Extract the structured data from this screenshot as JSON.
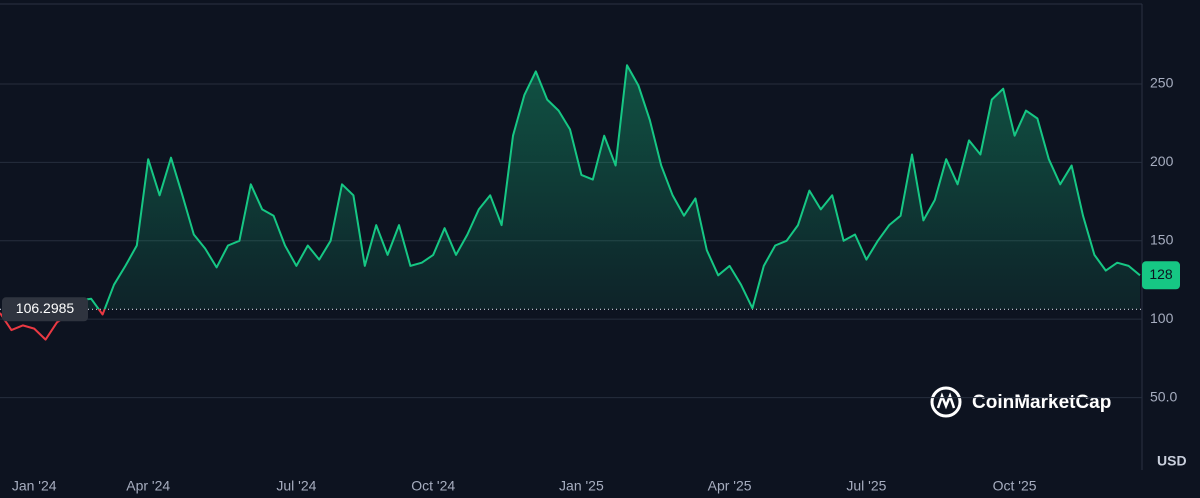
{
  "chart_data": {
    "type": "line",
    "categories": [
      null,
      null,
      null,
      "Jan '24",
      null,
      null,
      null,
      null,
      null,
      null,
      null,
      null,
      null,
      "Apr '24",
      null,
      null,
      null,
      null,
      null,
      null,
      null,
      null,
      null,
      null,
      null,
      null,
      "Jul '24",
      null,
      null,
      null,
      null,
      null,
      null,
      null,
      null,
      null,
      null,
      null,
      "Oct '24",
      null,
      null,
      null,
      null,
      null,
      null,
      null,
      null,
      null,
      null,
      null,
      null,
      "Jan '25",
      null,
      null,
      null,
      null,
      null,
      null,
      null,
      null,
      null,
      null,
      null,
      null,
      "Apr '25",
      null,
      null,
      null,
      null,
      null,
      null,
      null,
      null,
      null,
      null,
      null,
      "Jul '25",
      null,
      null,
      null,
      null,
      null,
      null,
      null,
      null,
      null,
      null,
      null,
      null,
      "Oct '25",
      null,
      null,
      null,
      null,
      null,
      null,
      null,
      null,
      null,
      null,
      null
    ],
    "series": [
      {
        "color": "#16c784",
        "values": [
          104,
          93,
          96,
          94,
          87,
          98,
          103,
          112,
          113,
          103,
          122,
          134,
          147,
          202,
          179,
          203,
          179,
          154,
          145,
          133,
          147,
          150,
          186,
          170,
          166,
          147,
          134,
          147,
          138,
          150,
          186,
          179,
          134,
          160,
          141,
          160,
          134,
          136,
          141,
          158,
          141,
          154,
          170,
          179,
          160,
          217,
          243,
          258,
          240,
          233,
          221,
          192,
          189,
          217,
          198,
          262,
          249,
          227,
          198,
          179,
          166,
          177,
          144,
          128,
          134,
          122,
          107,
          134,
          147,
          150,
          160,
          182,
          170,
          179,
          150,
          154,
          138,
          150,
          160,
          166,
          205,
          163,
          176,
          202,
          186,
          214,
          205,
          240,
          247,
          217,
          233,
          228,
          202,
          186,
          198,
          166,
          141,
          131,
          136,
          134,
          128
        ]
      }
    ],
    "below_color": "#ea3943",
    "reference_value": 106.2985,
    "ylim": [
      7,
      301
    ],
    "yticks": [
      {
        "value": 50,
        "label": "50.0"
      },
      100,
      150,
      200,
      250
    ],
    "y_axis_label": "USD",
    "grid": true,
    "watermark": "CoinMarketCap"
  }
}
